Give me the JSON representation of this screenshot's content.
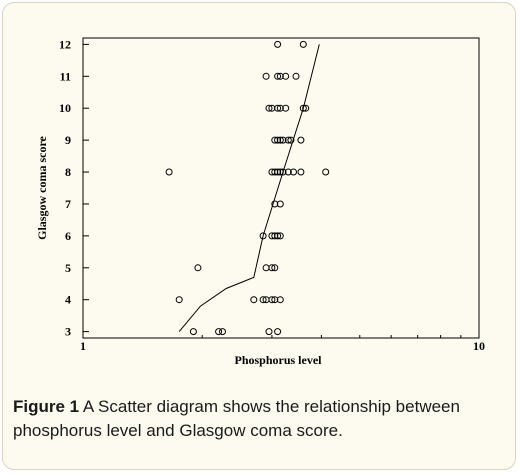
{
  "chart_data": {
    "type": "scatter",
    "xlabel": "Phosphorus level",
    "ylabel": "Glasgow coma score",
    "x_scale": "log",
    "xlim": [
      1,
      10
    ],
    "ylim": [
      2.8,
      12.2
    ],
    "x_ticks": [
      1,
      10
    ],
    "y_ticks": [
      3,
      4,
      5,
      6,
      7,
      8,
      9,
      10,
      11,
      12
    ],
    "grid": false,
    "legend": "none",
    "points": [
      {
        "x": 3.1,
        "y": 12
      },
      {
        "x": 3.6,
        "y": 12
      },
      {
        "x": 2.9,
        "y": 11
      },
      {
        "x": 3.1,
        "y": 11
      },
      {
        "x": 3.15,
        "y": 11
      },
      {
        "x": 3.25,
        "y": 11
      },
      {
        "x": 3.45,
        "y": 11
      },
      {
        "x": 2.95,
        "y": 10
      },
      {
        "x": 3.0,
        "y": 10
      },
      {
        "x": 3.1,
        "y": 10
      },
      {
        "x": 3.15,
        "y": 10
      },
      {
        "x": 3.25,
        "y": 10
      },
      {
        "x": 3.6,
        "y": 10
      },
      {
        "x": 3.65,
        "y": 10
      },
      {
        "x": 3.05,
        "y": 9
      },
      {
        "x": 3.1,
        "y": 9
      },
      {
        "x": 3.15,
        "y": 9
      },
      {
        "x": 3.2,
        "y": 9
      },
      {
        "x": 3.3,
        "y": 9
      },
      {
        "x": 3.35,
        "y": 9
      },
      {
        "x": 3.55,
        "y": 9
      },
      {
        "x": 1.65,
        "y": 8
      },
      {
        "x": 3.0,
        "y": 8
      },
      {
        "x": 3.05,
        "y": 8
      },
      {
        "x": 3.1,
        "y": 8
      },
      {
        "x": 3.15,
        "y": 8
      },
      {
        "x": 3.2,
        "y": 8
      },
      {
        "x": 3.3,
        "y": 8
      },
      {
        "x": 3.4,
        "y": 8
      },
      {
        "x": 3.55,
        "y": 8
      },
      {
        "x": 4.1,
        "y": 8
      },
      {
        "x": 3.05,
        "y": 7
      },
      {
        "x": 3.15,
        "y": 7
      },
      {
        "x": 2.85,
        "y": 6
      },
      {
        "x": 3.0,
        "y": 6
      },
      {
        "x": 3.05,
        "y": 6
      },
      {
        "x": 3.1,
        "y": 6
      },
      {
        "x": 3.15,
        "y": 6
      },
      {
        "x": 1.95,
        "y": 5
      },
      {
        "x": 2.9,
        "y": 5
      },
      {
        "x": 3.0,
        "y": 5
      },
      {
        "x": 3.05,
        "y": 5
      },
      {
        "x": 1.75,
        "y": 4
      },
      {
        "x": 2.7,
        "y": 4
      },
      {
        "x": 2.85,
        "y": 4
      },
      {
        "x": 2.9,
        "y": 4
      },
      {
        "x": 3.0,
        "y": 4
      },
      {
        "x": 3.05,
        "y": 4
      },
      {
        "x": 3.15,
        "y": 4
      },
      {
        "x": 1.9,
        "y": 3
      },
      {
        "x": 2.2,
        "y": 3
      },
      {
        "x": 2.25,
        "y": 3
      },
      {
        "x": 2.95,
        "y": 3
      },
      {
        "x": 3.1,
        "y": 3
      }
    ],
    "trend_line": [
      {
        "x": 1.75,
        "y": 3.0
      },
      {
        "x": 1.98,
        "y": 3.8
      },
      {
        "x": 2.3,
        "y": 4.35
      },
      {
        "x": 2.7,
        "y": 4.7
      },
      {
        "x": 2.85,
        "y": 6.0
      },
      {
        "x": 3.2,
        "y": 8.0
      },
      {
        "x": 3.6,
        "y": 10.0
      },
      {
        "x": 3.95,
        "y": 12.0
      }
    ]
  },
  "caption": {
    "label": "Figure 1",
    "text": " A Scatter diagram shows the relationship between phosphorus level and Glasgow coma score."
  },
  "colors": {
    "panel_background": "#fdfaf0",
    "marker_stroke": "#000000",
    "line": "#000000"
  }
}
